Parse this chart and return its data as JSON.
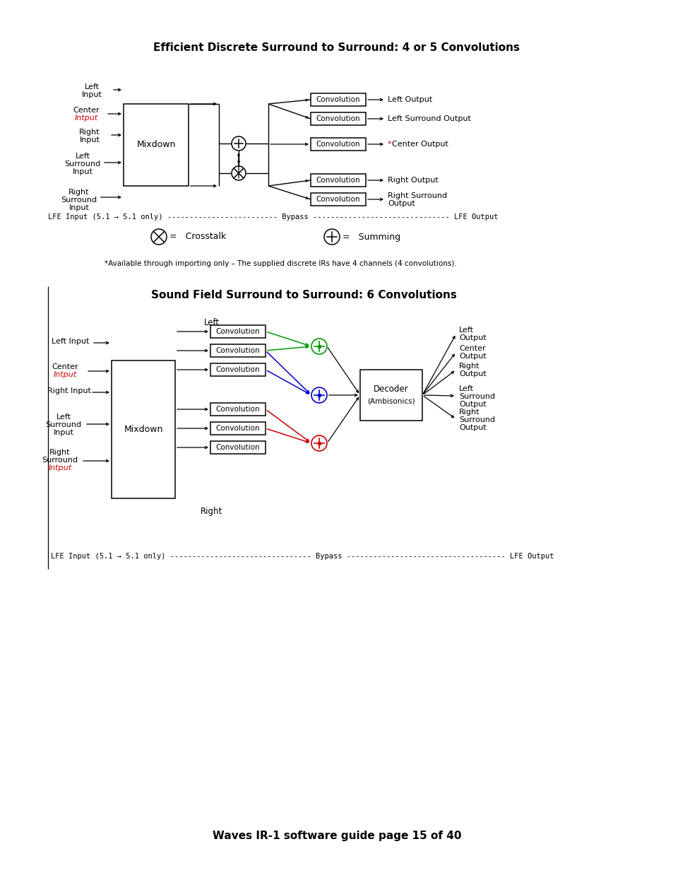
{
  "title1": "Efficient Discrete Surround to Surround: 4 or 5 Convolutions",
  "title2": "Sound Field Surround to Surround: 6 Convolutions",
  "footer": "Waves IR-1 software guide page 15 of 40",
  "footnote": "*Available through importing only – The supplied discrete IRs have 4 channels (4 convolutions).",
  "bg_color": "#ffffff",
  "text_color": "#000000",
  "red_color": "#cc0000"
}
